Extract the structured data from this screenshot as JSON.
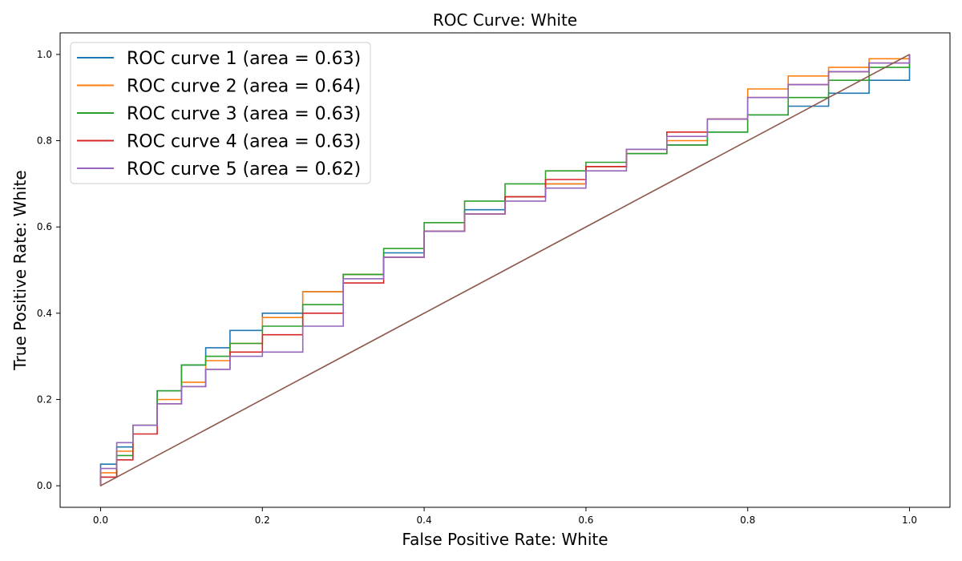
{
  "chart_data": {
    "type": "line",
    "title": "ROC Curve: White",
    "xlabel": "False Positive Rate: White",
    "ylabel": "True Positive Rate: White",
    "xlim": [
      -0.05,
      1.05
    ],
    "ylim": [
      -0.05,
      1.05
    ],
    "xticks": [
      "0.0",
      "0.2",
      "0.4",
      "0.6",
      "0.8",
      "1.0"
    ],
    "yticks": [
      "0.0",
      "0.2",
      "0.4",
      "0.6",
      "0.8",
      "1.0"
    ],
    "grid": false,
    "legend_position": "top-left",
    "series": [
      {
        "name": "ROC curve 1 (area = 0.63)",
        "color": "#1f77b4",
        "x": [
          0,
          0,
          0.02,
          0.04,
          0.07,
          0.1,
          0.13,
          0.16,
          0.2,
          0.25,
          0.3,
          0.35,
          0.4,
          0.45,
          0.5,
          0.55,
          0.6,
          0.65,
          0.7,
          0.75,
          0.8,
          0.85,
          0.9,
          0.95,
          1.0
        ],
        "y": [
          0,
          0.05,
          0.09,
          0.14,
          0.22,
          0.28,
          0.32,
          0.36,
          0.4,
          0.45,
          0.49,
          0.54,
          0.59,
          0.64,
          0.67,
          0.7,
          0.74,
          0.77,
          0.79,
          0.82,
          0.86,
          0.88,
          0.91,
          0.94,
          1.0
        ]
      },
      {
        "name": "ROC curve 2 (area = 0.64)",
        "color": "#ff7f0e",
        "x": [
          0,
          0,
          0.02,
          0.04,
          0.07,
          0.1,
          0.13,
          0.16,
          0.2,
          0.25,
          0.3,
          0.35,
          0.4,
          0.45,
          0.5,
          0.55,
          0.6,
          0.65,
          0.7,
          0.75,
          0.8,
          0.85,
          0.9,
          0.95,
          1.0
        ],
        "y": [
          0,
          0.03,
          0.08,
          0.14,
          0.2,
          0.24,
          0.29,
          0.33,
          0.39,
          0.45,
          0.49,
          0.53,
          0.59,
          0.63,
          0.67,
          0.7,
          0.74,
          0.77,
          0.8,
          0.85,
          0.92,
          0.95,
          0.97,
          0.99,
          1.0
        ]
      },
      {
        "name": "ROC curve 3 (area = 0.63)",
        "color": "#2ca02c",
        "x": [
          0,
          0,
          0.02,
          0.04,
          0.07,
          0.1,
          0.13,
          0.16,
          0.2,
          0.25,
          0.3,
          0.35,
          0.4,
          0.45,
          0.5,
          0.55,
          0.6,
          0.65,
          0.7,
          0.75,
          0.8,
          0.85,
          0.9,
          0.95,
          1.0
        ],
        "y": [
          0,
          0.02,
          0.07,
          0.14,
          0.22,
          0.28,
          0.3,
          0.33,
          0.37,
          0.42,
          0.49,
          0.55,
          0.61,
          0.66,
          0.7,
          0.73,
          0.75,
          0.77,
          0.79,
          0.82,
          0.86,
          0.9,
          0.94,
          0.97,
          1.0
        ]
      },
      {
        "name": "ROC curve 4 (area = 0.63)",
        "color": "#d62728",
        "x": [
          0,
          0,
          0.02,
          0.04,
          0.07,
          0.1,
          0.13,
          0.16,
          0.2,
          0.25,
          0.3,
          0.35,
          0.4,
          0.45,
          0.5,
          0.55,
          0.6,
          0.65,
          0.7,
          0.75,
          0.8,
          0.85,
          0.9,
          0.95,
          1.0
        ],
        "y": [
          0,
          0.02,
          0.06,
          0.12,
          0.19,
          0.23,
          0.27,
          0.31,
          0.35,
          0.4,
          0.47,
          0.53,
          0.59,
          0.63,
          0.67,
          0.71,
          0.74,
          0.78,
          0.82,
          0.85,
          0.9,
          0.93,
          0.96,
          0.98,
          1.0
        ]
      },
      {
        "name": "ROC curve 5 (area = 0.62)",
        "color": "#9467bd",
        "x": [
          0,
          0,
          0.02,
          0.04,
          0.07,
          0.1,
          0.13,
          0.16,
          0.2,
          0.25,
          0.3,
          0.35,
          0.4,
          0.45,
          0.5,
          0.55,
          0.6,
          0.65,
          0.7,
          0.75,
          0.8,
          0.85,
          0.9,
          0.95,
          1.0
        ],
        "y": [
          0,
          0.04,
          0.1,
          0.14,
          0.19,
          0.23,
          0.27,
          0.3,
          0.31,
          0.37,
          0.48,
          0.53,
          0.59,
          0.63,
          0.66,
          0.69,
          0.73,
          0.78,
          0.81,
          0.85,
          0.9,
          0.93,
          0.96,
          0.98,
          1.0
        ]
      },
      {
        "name": "",
        "color": "#8c564b",
        "x": [
          0,
          1
        ],
        "y": [
          0,
          1
        ]
      }
    ]
  }
}
